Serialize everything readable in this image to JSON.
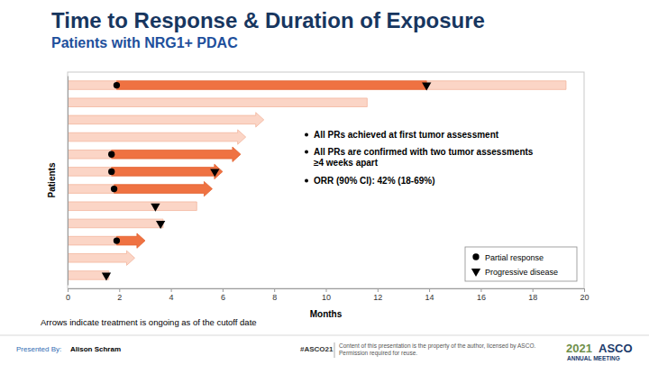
{
  "chart_data": {
    "type": "swimmer",
    "title": "Time to Response & Duration of Exposure",
    "subtitle": "Patients with NRG1+ PDAC",
    "x_label": "Months",
    "y_label": "Patients",
    "orientation": "horizontal",
    "categories": [
      null,
      null,
      null,
      null,
      null,
      null,
      null,
      null,
      null,
      null,
      null,
      null
    ],
    "values": [
      19.3,
      11.6,
      7.6,
      6.9,
      6.7,
      6.0,
      5.6,
      5.0,
      3.7,
      3.0,
      2.6,
      1.6
    ],
    "color": "#fbd5c6",
    "ongoing": [
      false,
      false,
      true,
      true,
      true,
      true,
      true,
      false,
      false,
      true,
      true,
      false
    ],
    "response_end": [
      13.9,
      null,
      null,
      null,
      6.7,
      6.0,
      5.6,
      null,
      null,
      3.0,
      null,
      null
    ],
    "series": [
      {
        "name": "Partial response",
        "marker": "circle",
        "color": "#000000",
        "values": [
          1.9,
          null,
          null,
          null,
          1.7,
          1.7,
          1.8,
          null,
          null,
          1.9,
          null,
          null
        ]
      },
      {
        "name": "Progressive disease",
        "marker": "triangle-down",
        "color": "#000000",
        "values": [
          13.9,
          null,
          null,
          null,
          null,
          5.7,
          null,
          3.4,
          3.6,
          null,
          null,
          1.5
        ]
      }
    ],
    "xlim": [
      0,
      20
    ],
    "xticks": [
      0,
      2,
      4,
      6,
      8,
      10,
      12,
      14,
      16,
      18,
      20
    ],
    "tick_labels": "x",
    "legend": "lower right",
    "annotations": [
      "All PRs achieved at first tumor assessment",
      "All PRs are confirmed with two tumor assessments ≥4 weeks apart",
      "ORR (90% CI): 42% (18-69%)"
    ],
    "footnote": "Arrows indicate treatment is ongoing as of the cutoff date"
  },
  "footer": {
    "presented_by": "Presented By:",
    "presenter": "Alison Schram",
    "hashtag": "#ASCO21",
    "notice": "Content of this presentation is the property of the author, licensed by ASCO. Permission required for reuse.",
    "logo_year": "2021",
    "logo_name": "ASCO",
    "logo_sub": "ANNUAL MEETING"
  }
}
